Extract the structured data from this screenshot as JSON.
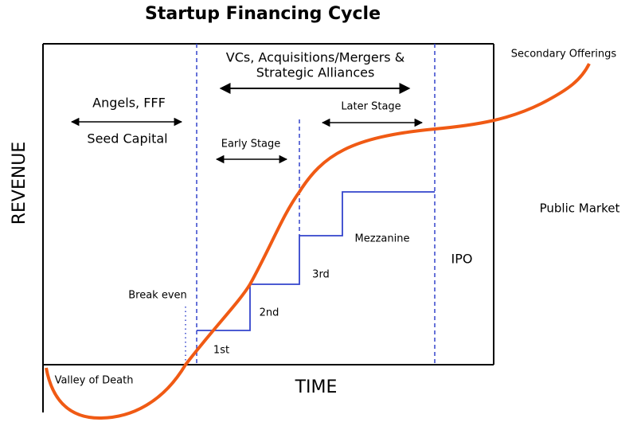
{
  "title": "Startup Financing Cycle",
  "axes": {
    "y_label": "REVENUE",
    "x_label": "TIME"
  },
  "stages": {
    "vcs_line1": "VCs, Acquisitions/Mergers &",
    "vcs_line2": "Strategic Alliances",
    "angels": "Angels, FFF",
    "seed": "Seed Capital",
    "later": "Later Stage",
    "early": "Early Stage",
    "secondary": "Secondary Offerings",
    "public_market": "Public Market",
    "mezzanine": "Mezzanine",
    "ipo": "IPO",
    "third": "3rd",
    "second": "2nd",
    "first": "1st",
    "break_even": "Break even",
    "valley": "Valley of Death"
  }
}
